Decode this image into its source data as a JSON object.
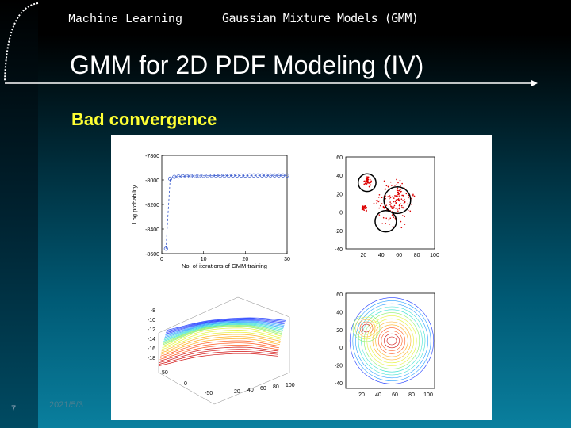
{
  "header": {
    "course": "Machine Learning",
    "topic": "Gaussian Mixture Models (GMM)"
  },
  "title": "GMM for 2D PDF Modeling (IV)",
  "bullet": "Bad convergence",
  "footer": {
    "page": "7",
    "date": "2021/5/3"
  },
  "figure": {
    "chart_data": [
      {
        "type": "line",
        "title": "",
        "xlabel": "No. of iterations of GMM training",
        "ylabel": "Log probability",
        "xlim": [
          0,
          30
        ],
        "ylim": [
          -8600,
          -7800
        ],
        "x_ticks": [
          "0",
          "10",
          "20",
          "30"
        ],
        "y_ticks": [
          "-7800",
          "-8000",
          "-8200",
          "-8400",
          "-8600"
        ],
        "series": [
          {
            "x": [
              1,
              2,
              3,
              4,
              5,
              6,
              7,
              8,
              9,
              10,
              11,
              12,
              13,
              14,
              15,
              16,
              17,
              18,
              19,
              20,
              21,
              22,
              23,
              24,
              25,
              26,
              27,
              28,
              29,
              30
            ],
            "values": [
              -8560,
              -7990,
              -7975,
              -7972,
              -7970,
              -7969,
              -7968,
              -7967,
              -7967,
              -7966,
              -7966,
              -7966,
              -7965,
              -7965,
              -7965,
              -7965,
              -7964,
              -7964,
              -7964,
              -7964,
              -7963,
              -7963,
              -7963,
              -7963,
              -7963,
              -7963,
              -7963,
              -7963,
              -7963,
              -7963
            ]
          }
        ],
        "color": "#3355cc"
      },
      {
        "type": "scatter",
        "xlim": [
          0,
          100
        ],
        "ylim": [
          -40,
          60
        ],
        "x_ticks": [
          "20",
          "40",
          "60",
          "80",
          "100"
        ],
        "y_ticks": [
          "60",
          "40",
          "20",
          "0",
          "-20",
          "-40"
        ],
        "components": [
          {
            "cx": 24,
            "cy": 32,
            "r": 10
          },
          {
            "cx": 58,
            "cy": 13,
            "r": 15
          },
          {
            "cx": 45,
            "cy": -10,
            "r": 12
          }
        ],
        "point_color": "#dd0000"
      },
      {
        "type": "surface",
        "x_ticks": [
          "20",
          "40",
          "60",
          "80",
          "100"
        ],
        "y_ticks": [
          "-50",
          "0",
          "50"
        ],
        "z_ticks": [
          "-8",
          "-10",
          "-12",
          "-14",
          "-16",
          "-18"
        ]
      },
      {
        "type": "contour",
        "x_ticks": [
          "20",
          "40",
          "60",
          "80",
          "100"
        ],
        "y_ticks": [
          "60",
          "40",
          "20",
          "0",
          "-20",
          "-40"
        ]
      }
    ]
  }
}
